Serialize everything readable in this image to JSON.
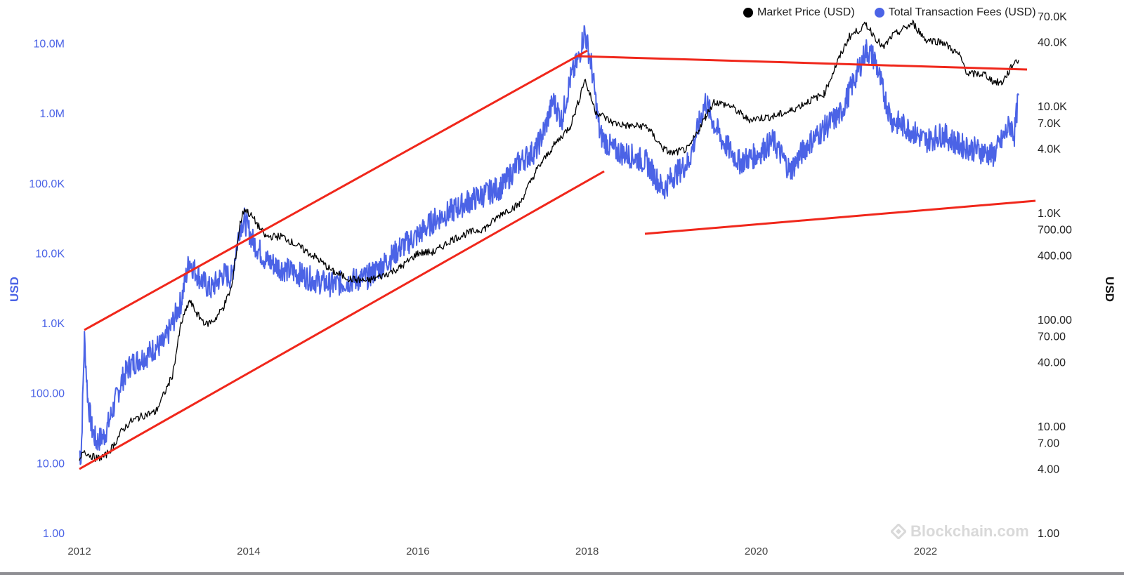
{
  "legend": [
    {
      "label": "Market Price (USD)",
      "color": "#000000"
    },
    {
      "label": "Total Transaction Fees (USD)",
      "color": "#4b63e6"
    }
  ],
  "watermark": "Blockchain.com",
  "colors": {
    "fees": "#4b63e6",
    "price": "#000000",
    "trendline": "#f0271b"
  },
  "chart_data": {
    "type": "line",
    "title": "",
    "xlabel": "",
    "ylabel_left": "USD",
    "ylabel_right": "USD",
    "y_left_scale": "log",
    "y_right_scale": "log",
    "y_left_range": [
      1,
      30000000
    ],
    "y_right_range": [
      1,
      80000
    ],
    "y_left_ticks": [
      {
        "value": 1,
        "label": "1.00"
      },
      {
        "value": 10,
        "label": "10.00"
      },
      {
        "value": 100,
        "label": "100.00"
      },
      {
        "value": 1000,
        "label": "1.0K"
      },
      {
        "value": 10000,
        "label": "10.0K"
      },
      {
        "value": 100000,
        "label": "100.0K"
      },
      {
        "value": 1000000,
        "label": "1.0M"
      },
      {
        "value": 10000000,
        "label": "10.0M"
      }
    ],
    "y_right_ticks": [
      {
        "value": 1,
        "label": "1.00"
      },
      {
        "value": 4,
        "label": "4.00"
      },
      {
        "value": 7,
        "label": "7.00"
      },
      {
        "value": 10,
        "label": "10.00"
      },
      {
        "value": 40,
        "label": "40.00"
      },
      {
        "value": 70,
        "label": "70.00"
      },
      {
        "value": 100,
        "label": "100.00"
      },
      {
        "value": 400,
        "label": "400.00"
      },
      {
        "value": 700,
        "label": "700.00"
      },
      {
        "value": 1000,
        "label": "1.0K"
      },
      {
        "value": 4000,
        "label": "4.0K"
      },
      {
        "value": 7000,
        "label": "7.0K"
      },
      {
        "value": 10000,
        "label": "10.0K"
      },
      {
        "value": 40000,
        "label": "40.0K"
      },
      {
        "value": 70000,
        "label": "70.0K"
      }
    ],
    "x_range": [
      2012.0,
      2023.2
    ],
    "x_ticks": [
      {
        "value": 2012,
        "label": "2012"
      },
      {
        "value": 2014,
        "label": "2014"
      },
      {
        "value": 2016,
        "label": "2016"
      },
      {
        "value": 2018,
        "label": "2018"
      },
      {
        "value": 2020,
        "label": "2020"
      },
      {
        "value": 2022,
        "label": "2022"
      }
    ],
    "grid": false,
    "legend_position": "top-right",
    "series": [
      {
        "name": "Total Transaction Fees (USD)",
        "axis": "left",
        "color": "#4b63e6",
        "x": [
          2012.0,
          2012.02,
          2012.06,
          2012.1,
          2012.15,
          2012.2,
          2012.3,
          2012.4,
          2012.5,
          2012.6,
          2012.7,
          2012.8,
          2012.9,
          2013.0,
          2013.1,
          2013.2,
          2013.3,
          2013.35,
          2013.45,
          2013.55,
          2013.7,
          2013.8,
          2013.9,
          2013.95,
          2014.05,
          2014.2,
          2014.4,
          2014.6,
          2014.8,
          2015.0,
          2015.2,
          2015.4,
          2015.6,
          2015.8,
          2016.0,
          2016.2,
          2016.4,
          2016.6,
          2016.8,
          2017.0,
          2017.2,
          2017.4,
          2017.5,
          2017.6,
          2017.7,
          2017.8,
          2017.9,
          2017.97,
          2018.05,
          2018.15,
          2018.3,
          2018.5,
          2018.7,
          2018.9,
          2019.0,
          2019.2,
          2019.4,
          2019.5,
          2019.6,
          2019.8,
          2020.0,
          2020.2,
          2020.4,
          2020.6,
          2020.8,
          2021.0,
          2021.2,
          2021.3,
          2021.4,
          2021.5,
          2021.6,
          2021.8,
          2022.0,
          2022.2,
          2022.4,
          2022.6,
          2022.8,
          2022.9,
          2023.0,
          2023.05,
          2023.1
        ],
        "values": [
          15,
          12,
          600,
          80,
          30,
          20,
          25,
          60,
          150,
          250,
          300,
          350,
          450,
          500,
          1000,
          2000,
          8000,
          6000,
          4000,
          3000,
          5000,
          4500,
          25000,
          30000,
          15000,
          8000,
          6000,
          5000,
          4000,
          3500,
          4000,
          4500,
          7000,
          12000,
          18000,
          30000,
          40000,
          55000,
          70000,
          90000,
          200000,
          300000,
          600000,
          1500000,
          800000,
          3000000,
          6000000,
          15000000,
          5000000,
          500000,
          300000,
          250000,
          200000,
          80000,
          120000,
          200000,
          1500000,
          700000,
          400000,
          200000,
          250000,
          400000,
          150000,
          350000,
          600000,
          1000000,
          4000000,
          8000000,
          6000000,
          2000000,
          800000,
          600000,
          400000,
          500000,
          350000,
          300000,
          250000,
          400000,
          700000,
          500000,
          1800000
        ]
      },
      {
        "name": "Market Price (USD)",
        "axis": "right",
        "color": "#000000",
        "x": [
          2012.0,
          2012.05,
          2012.1,
          2012.2,
          2012.3,
          2012.4,
          2012.5,
          2012.6,
          2012.7,
          2012.8,
          2012.9,
          2013.0,
          2013.1,
          2013.2,
          2013.3,
          2013.4,
          2013.5,
          2013.6,
          2013.7,
          2013.8,
          2013.9,
          2013.95,
          2014.05,
          2014.2,
          2014.4,
          2014.6,
          2014.8,
          2015.0,
          2015.2,
          2015.4,
          2015.6,
          2015.8,
          2016.0,
          2016.2,
          2016.4,
          2016.6,
          2016.8,
          2017.0,
          2017.2,
          2017.4,
          2017.6,
          2017.8,
          2017.9,
          2017.97,
          2018.1,
          2018.3,
          2018.5,
          2018.7,
          2018.9,
          2019.0,
          2019.2,
          2019.4,
          2019.5,
          2019.7,
          2019.9,
          2020.2,
          2020.4,
          2020.6,
          2020.8,
          2020.95,
          2021.1,
          2021.3,
          2021.5,
          2021.6,
          2021.85,
          2022.0,
          2022.2,
          2022.4,
          2022.5,
          2022.7,
          2022.8,
          2022.9,
          2023.0,
          2023.05,
          2023.1
        ],
        "values": [
          4.5,
          6,
          5.5,
          5,
          5.2,
          6.5,
          9,
          11,
          12,
          13,
          13.5,
          20,
          30,
          90,
          150,
          110,
          90,
          100,
          130,
          200,
          800,
          1100,
          900,
          600,
          600,
          480,
          380,
          280,
          240,
          230,
          260,
          310,
          420,
          430,
          560,
          650,
          720,
          1000,
          1200,
          2500,
          4200,
          6500,
          11000,
          18000,
          9000,
          7000,
          6500,
          6500,
          4000,
          3600,
          4000,
          8000,
          11000,
          10000,
          7500,
          8000,
          9000,
          11000,
          13000,
          25000,
          45000,
          58000,
          35000,
          45000,
          60000,
          42000,
          40000,
          30000,
          20000,
          20000,
          17000,
          16500,
          22000,
          26000,
          27000
        ]
      }
    ]
  }
}
